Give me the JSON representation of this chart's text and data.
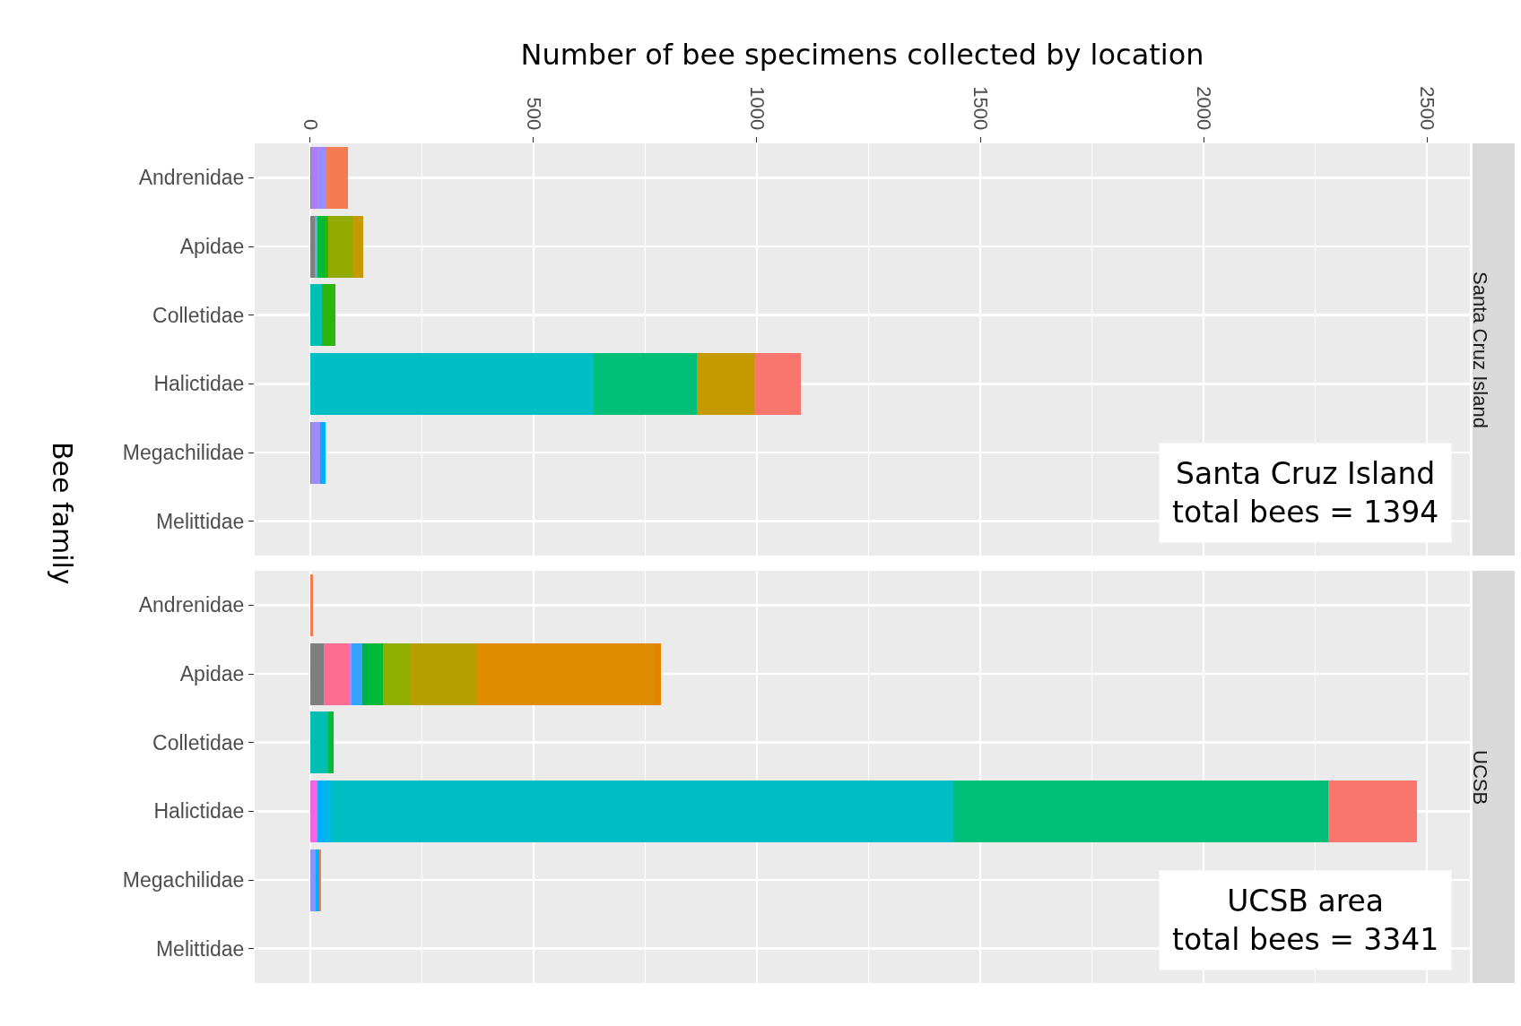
{
  "chart_data": [
    {
      "type": "bar",
      "orientation": "horizontal",
      "stacked": true,
      "title": "Santa Cruz Island",
      "xlabel": "Number of bee specimens collected by location",
      "ylabel": "Bee family",
      "categories": [
        "Andrenidae",
        "Apidae",
        "Colletidae",
        "Halictidae",
        "Megachilidae",
        "Melittidae"
      ],
      "xlim": [
        -124,
        2596
      ],
      "xticks": [
        0,
        500,
        1000,
        1500,
        2000,
        2500
      ],
      "grid": true,
      "annotations": [
        "Santa Cruz Island\ntotal bees = 1394"
      ],
      "series": [
        {
          "color": "#7f7f7f",
          "values": [
            2,
            11,
            null,
            null,
            3,
            null
          ]
        },
        {
          "color": "#b07aff",
          "values": [
            14,
            null,
            null,
            null,
            null,
            null
          ]
        },
        {
          "color": "#9d8cff",
          "values": [
            20,
            null,
            null,
            null,
            20,
            null
          ]
        },
        {
          "color": "#00b0f6",
          "values": [
            null,
            null,
            null,
            null,
            12,
            null
          ]
        },
        {
          "color": "#5fb0d8",
          "values": [
            null,
            6,
            null,
            null,
            null,
            null
          ]
        },
        {
          "color": "#00bfb2",
          "values": [
            null,
            null,
            27,
            null,
            null,
            null
          ]
        },
        {
          "color": "#00bfc4",
          "values": [
            null,
            null,
            null,
            635,
            null,
            null
          ]
        },
        {
          "color": "#00ba38",
          "values": [
            null,
            15,
            null,
            null,
            null,
            null
          ]
        },
        {
          "color": "#2cb50a",
          "values": [
            null,
            8,
            29,
            null,
            null,
            null
          ]
        },
        {
          "color": "#00c079",
          "values": [
            null,
            null,
            null,
            231,
            null,
            null
          ]
        },
        {
          "color": "#93aa00",
          "values": [
            null,
            57,
            null,
            null,
            null,
            null
          ]
        },
        {
          "color": "#c49a00",
          "values": [
            null,
            21,
            null,
            128,
            null,
            null
          ]
        },
        {
          "color": "#f47c50",
          "values": [
            48,
            null,
            null,
            null,
            null,
            null
          ]
        },
        {
          "color": "#f8766d",
          "values": [
            null,
            null,
            null,
            104,
            null,
            null
          ]
        }
      ]
    },
    {
      "type": "bar",
      "orientation": "horizontal",
      "stacked": true,
      "title": "UCSB",
      "categories": [
        "Andrenidae",
        "Apidae",
        "Colletidae",
        "Halictidae",
        "Megachilidae",
        "Melittidae"
      ],
      "xlim": [
        -124,
        2596
      ],
      "xticks": [
        0,
        500,
        1000,
        1500,
        2000,
        2500
      ],
      "grid": true,
      "tick_labels": "y",
      "annotations": [
        "UCSB area\ntotal bees = 3341"
      ],
      "series": [
        {
          "color": "#7f7f7f",
          "values": [
            null,
            31,
            null,
            null,
            null,
            null
          ]
        },
        {
          "color": "#ff6c91",
          "values": [
            null,
            56,
            null,
            null,
            null,
            null
          ]
        },
        {
          "color": "#f564e3",
          "values": [
            null,
            null,
            null,
            17,
            null,
            null
          ]
        },
        {
          "color": "#c77cff",
          "values": [
            null,
            5,
            null,
            null,
            null,
            null
          ]
        },
        {
          "color": "#8b93ff",
          "values": [
            null,
            null,
            null,
            null,
            12,
            null
          ]
        },
        {
          "color": "#35a2ff",
          "values": [
            null,
            25,
            null,
            null,
            null,
            null
          ]
        },
        {
          "color": "#00b0f6",
          "values": [
            null,
            null,
            null,
            17,
            9,
            null
          ]
        },
        {
          "color": "#00b8e5",
          "values": [
            null,
            null,
            null,
            12,
            null,
            null
          ]
        },
        {
          "color": "#00bfb2",
          "values": [
            null,
            null,
            40,
            null,
            null,
            null
          ]
        },
        {
          "color": "#00bfc4",
          "values": [
            null,
            null,
            null,
            1393,
            null,
            null
          ]
        },
        {
          "color": "#00b050",
          "values": [
            null,
            12,
            null,
            null,
            null,
            null
          ]
        },
        {
          "color": "#00ba38",
          "values": [
            null,
            34,
            12,
            null,
            null,
            null
          ]
        },
        {
          "color": "#00c079",
          "values": [
            null,
            null,
            null,
            840,
            null,
            null
          ]
        },
        {
          "color": "#8fae00",
          "values": [
            null,
            61,
            null,
            null,
            null,
            null
          ]
        },
        {
          "color": "#b79f00",
          "values": [
            null,
            149,
            null,
            null,
            null,
            null
          ]
        },
        {
          "color": "#de8c00",
          "values": [
            null,
            398,
            null,
            null,
            null,
            null
          ]
        },
        {
          "color": "#e38500",
          "values": [
            null,
            15,
            null,
            null,
            null,
            null
          ]
        },
        {
          "color": "#f47c50",
          "values": [
            7,
            null,
            null,
            null,
            3,
            null
          ]
        },
        {
          "color": "#f8766d",
          "values": [
            null,
            null,
            null,
            198,
            null,
            null
          ]
        }
      ]
    }
  ]
}
